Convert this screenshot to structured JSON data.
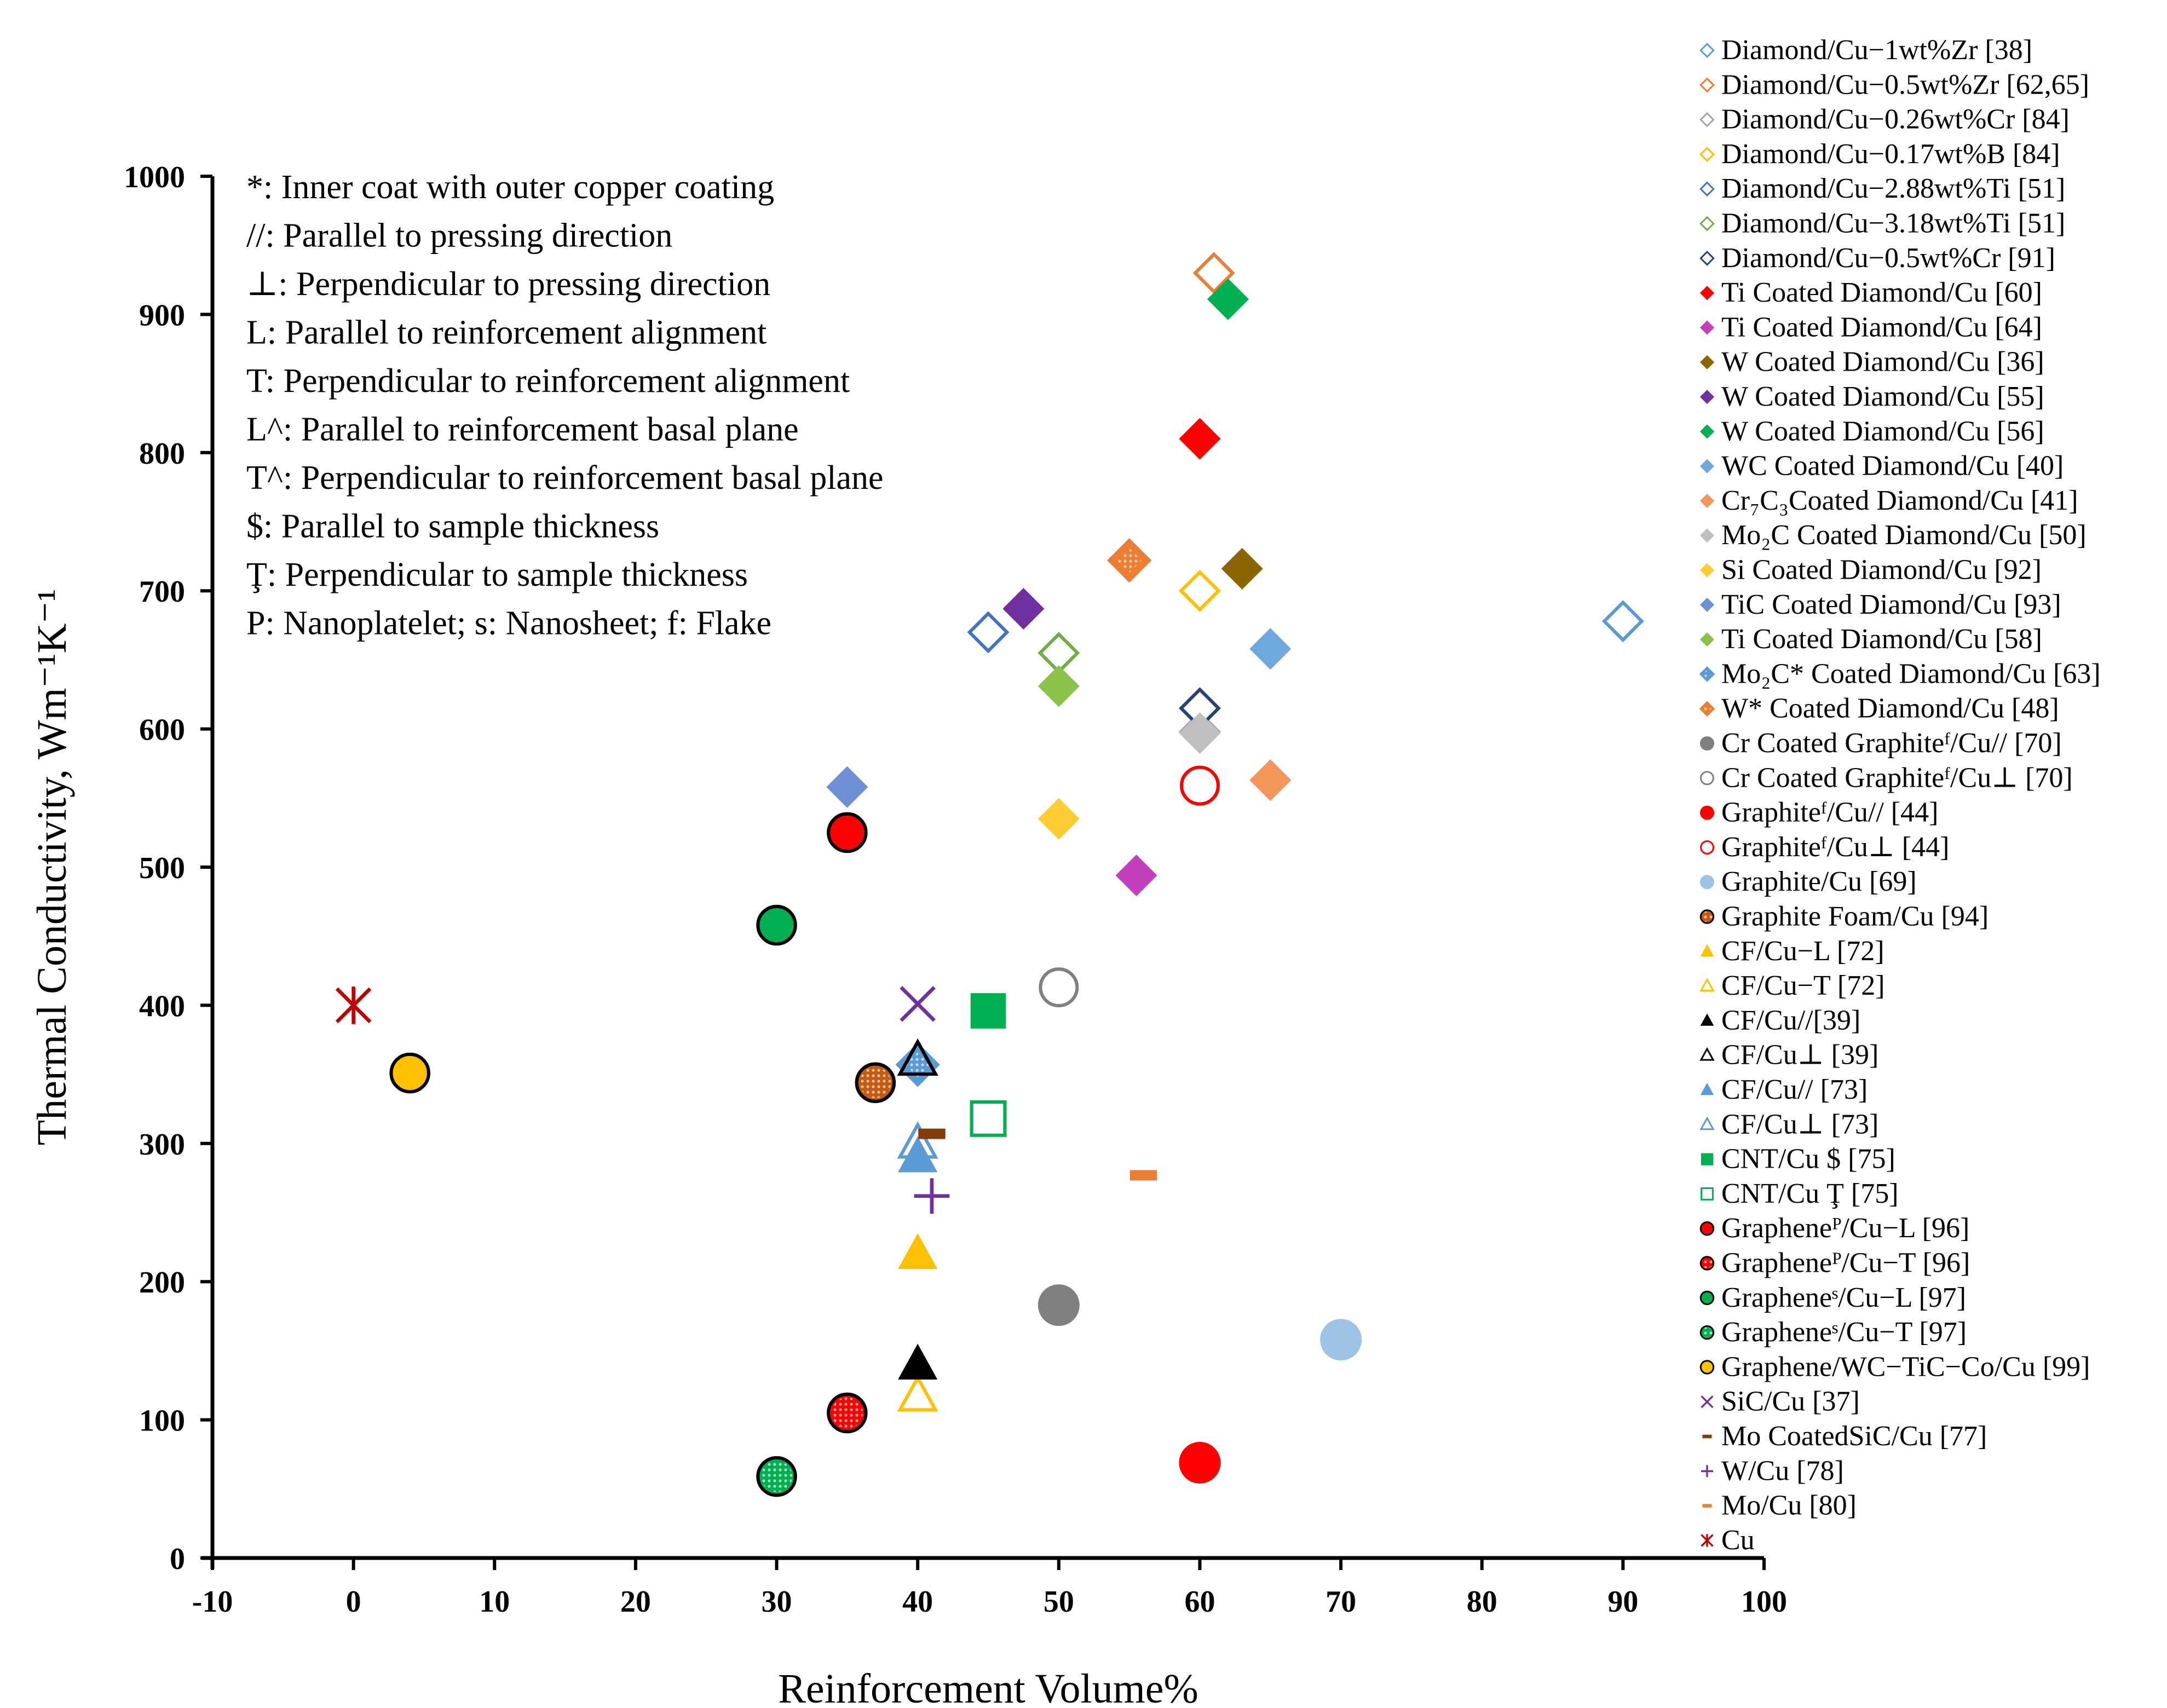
{
  "chart_data": {
    "type": "scatter",
    "xlabel": "Reinforcement Volume%",
    "ylabel": "Thermal Conductivity, Wm⁻¹K⁻¹",
    "xlim": [
      -10,
      100
    ],
    "ylim": [
      0,
      1000
    ],
    "x_ticks": [
      -10,
      0,
      10,
      20,
      30,
      40,
      50,
      60,
      70,
      80,
      90,
      100
    ],
    "y_ticks": [
      0,
      100,
      200,
      300,
      400,
      500,
      600,
      700,
      800,
      900,
      1000
    ],
    "grid": false,
    "legend_position": "right",
    "notes": [
      "*: Inner coat with outer copper coating",
      "//: Parallel to pressing direction",
      "⊥: Perpendicular to pressing direction",
      "L: Parallel to reinforcement alignment",
      "T: Perpendicular to reinforcement alignment",
      "L^: Parallel to reinforcement basal plane",
      "T^: Perpendicular to reinforcement basal plane",
      "$: Parallel to sample thickness",
      "Ţ: Perpendicular to sample thickness",
      "P: Nanoplatelet; s: Nanosheet; f: Flake"
    ],
    "series": [
      {
        "name": "Diamond/Cu−1wt%Zr [38]",
        "marker": "diamond-open",
        "color": "#5b9bd5",
        "points": [
          [
            90,
            678
          ]
        ]
      },
      {
        "name": "Diamond/Cu−0.5wt%Zr [62,65]",
        "marker": "diamond-open",
        "color": "#ed7d31",
        "points": [
          [
            61,
            930
          ]
        ]
      },
      {
        "name": "Diamond/Cu−0.26wt%Cr [84]",
        "marker": "diamond-open",
        "color": "#a5a5a5",
        "points": [
          [
            60,
            598
          ]
        ]
      },
      {
        "name": "Diamond/Cu−0.17wt%B [84]",
        "marker": "diamond-open",
        "color": "#ffc000",
        "points": [
          [
            60,
            700
          ]
        ]
      },
      {
        "name": "Diamond/Cu−2.88wt%Ti [51]",
        "marker": "diamond-open",
        "color": "#4472c4",
        "points": [
          [
            45,
            670
          ]
        ]
      },
      {
        "name": "Diamond/Cu−3.18wt%Ti [51]",
        "marker": "diamond-open",
        "color": "#70ad47",
        "points": [
          [
            50,
            655
          ]
        ]
      },
      {
        "name": "Diamond/Cu−0.5wt%Cr [91]",
        "marker": "diamond-open",
        "color": "#264478",
        "points": [
          [
            60,
            615
          ]
        ]
      },
      {
        "name": "Ti Coated Diamond/Cu [60]",
        "marker": "diamond",
        "color": "#ff0000",
        "points": [
          [
            60,
            810
          ]
        ]
      },
      {
        "name": "Ti Coated Diamond/Cu [64]",
        "marker": "diamond",
        "color": "#c43fbd",
        "points": [
          [
            55.5,
            494
          ]
        ]
      },
      {
        "name": "W Coated Diamond/Cu [36]",
        "marker": "diamond",
        "color": "#8b6500",
        "points": [
          [
            63,
            716
          ]
        ]
      },
      {
        "name": "W Coated Diamond/Cu [55]",
        "marker": "diamond",
        "color": "#7030a0",
        "points": [
          [
            47.5,
            687
          ]
        ]
      },
      {
        "name": "W Coated Diamond/Cu [56]",
        "marker": "diamond",
        "color": "#00b050",
        "points": [
          [
            62,
            911
          ]
        ]
      },
      {
        "name": "WC Coated Diamond/Cu [40]",
        "marker": "diamond",
        "color": "#6fa8dc",
        "points": [
          [
            65,
            658
          ]
        ]
      },
      {
        "name": "Cr₇C₃Coated Diamond/Cu [41]",
        "marker": "diamond",
        "color": "#f4955a",
        "points": [
          [
            65,
            563
          ]
        ]
      },
      {
        "name": "Mo₂C Coated Diamond/Cu [50]",
        "marker": "diamond",
        "color": "#bfbfbf",
        "points": [
          [
            60,
            597
          ]
        ]
      },
      {
        "name": "Si Coated Diamond/Cu [92]",
        "marker": "diamond",
        "color": "#ffcc33",
        "points": [
          [
            50,
            535
          ]
        ]
      },
      {
        "name": "TiC Coated Diamond/Cu [93]",
        "marker": "diamond",
        "color": "#6d8fd6",
        "points": [
          [
            35,
            558
          ]
        ]
      },
      {
        "name": "Ti Coated Diamond/Cu [58]",
        "marker": "diamond",
        "color": "#8bc34a",
        "points": [
          [
            50,
            631
          ]
        ]
      },
      {
        "name": "Mo₂C* Coated Diamond/Cu [63]",
        "marker": "diamond-hatch",
        "color": "#5b9bd5",
        "points": [
          [
            40,
            357
          ]
        ]
      },
      {
        "name": "W* Coated Diamond/Cu [48]",
        "marker": "diamond-hatch",
        "color": "#ed7d31",
        "points": [
          [
            55,
            722
          ]
        ]
      },
      {
        "name": "Cr Coated Graphiteᶠ/Cu// [70]",
        "marker": "circle",
        "color": "#808080",
        "points": [
          [
            50,
            183
          ]
        ]
      },
      {
        "name": "Cr Coated Graphiteᶠ/Cu⊥ [70]",
        "marker": "circle-open",
        "color": "#808080",
        "points": [
          [
            50,
            413
          ]
        ]
      },
      {
        "name": "Graphiteᶠ/Cu// [44]",
        "marker": "circle",
        "color": "#ff0000",
        "points": [
          [
            60,
            69
          ]
        ]
      },
      {
        "name": "Graphiteᶠ/Cu⊥ [44]",
        "marker": "circle-open",
        "color": "#ff0000",
        "points": [
          [
            60,
            559
          ]
        ]
      },
      {
        "name": "Graphite/Cu [69]",
        "marker": "circle",
        "color": "#9dc3e6",
        "points": [
          [
            70,
            158
          ]
        ]
      },
      {
        "name": "Graphite Foam/Cu [94]",
        "marker": "circle-hatch",
        "color": "#c55a11",
        "points": [
          [
            37,
            344
          ]
        ]
      },
      {
        "name": "CF/Cu−L [72]",
        "marker": "triangle",
        "color": "#ffc000",
        "points": [
          [
            40,
            220
          ]
        ]
      },
      {
        "name": "CF/Cu−T [72]",
        "marker": "triangle-open",
        "color": "#ffc000",
        "points": [
          [
            40,
            117
          ]
        ]
      },
      {
        "name": "CF/Cu//[39]",
        "marker": "triangle",
        "color": "#000000",
        "points": [
          [
            40,
            140
          ]
        ]
      },
      {
        "name": "CF/Cu⊥ [39]",
        "marker": "triangle-open",
        "color": "#000000",
        "points": [
          [
            40,
            360
          ]
        ]
      },
      {
        "name": "CF/Cu// [73]",
        "marker": "triangle",
        "color": "#5b9bd5",
        "points": [
          [
            40,
            290
          ]
        ]
      },
      {
        "name": "CF/Cu⊥ [73]",
        "marker": "triangle-open",
        "color": "#5b9bd5",
        "points": [
          [
            40,
            300
          ]
        ]
      },
      {
        "name": "CNT/Cu $ [75]",
        "marker": "square",
        "color": "#00b050",
        "points": [
          [
            45,
            396
          ]
        ]
      },
      {
        "name": "CNT/Cu Ţ [75]",
        "marker": "square-open",
        "color": "#00b050",
        "points": [
          [
            45,
            318
          ]
        ]
      },
      {
        "name": "Grapheneᴾ/Cu−L [96]",
        "marker": "circle-ring",
        "color": "#ff0000",
        "points": [
          [
            35,
            525
          ]
        ]
      },
      {
        "name": "Grapheneᴾ/Cu−T [96]",
        "marker": "circle-hatch",
        "color": "#ff0000",
        "points": [
          [
            35,
            105
          ]
        ]
      },
      {
        "name": "Grapheneˢ/Cu−L [97]",
        "marker": "circle-ring",
        "color": "#00b050",
        "points": [
          [
            30,
            458
          ]
        ]
      },
      {
        "name": "Grapheneˢ/Cu−T [97]",
        "marker": "circle-hatch",
        "color": "#00b050",
        "points": [
          [
            30,
            59
          ]
        ]
      },
      {
        "name": "Graphene/WC−TiC−Co/Cu [99]",
        "marker": "circle-ring",
        "color": "#ffc000",
        "points": [
          [
            4,
            351
          ]
        ]
      },
      {
        "name": "SiC/Cu [37]",
        "marker": "x",
        "color": "#7030a0",
        "points": [
          [
            40,
            401
          ]
        ]
      },
      {
        "name": "Mo CoatedSiC/Cu [77]",
        "marker": "dash",
        "color": "#843c0c",
        "points": [
          [
            41,
            307
          ]
        ]
      },
      {
        "name": "W/Cu [78]",
        "marker": "plus",
        "color": "#7030a0",
        "points": [
          [
            41,
            262
          ]
        ]
      },
      {
        "name": "Mo/Cu [80]",
        "marker": "dash",
        "color": "#ed7d31",
        "points": [
          [
            56,
            277
          ]
        ]
      },
      {
        "name": "Cu",
        "marker": "star",
        "color": "#c00000",
        "points": [
          [
            0,
            400
          ]
        ]
      }
    ]
  }
}
